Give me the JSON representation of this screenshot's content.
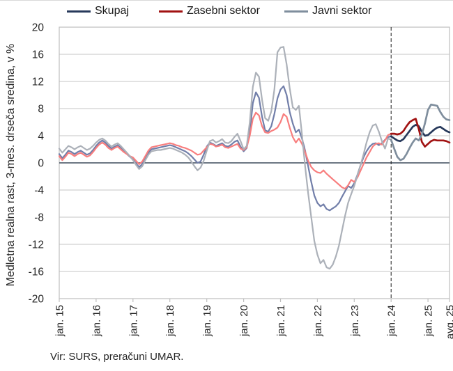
{
  "source_note": "Vir: SURS, preračuni UMAR.",
  "chart_data": {
    "type": "line",
    "title": "",
    "ylabel": "Medletna realna rast, 3-mes. drseča sredina, v %",
    "xlabel": "",
    "ylim": [
      -20,
      20
    ],
    "ytick_step": 4,
    "yticks": [
      20,
      16,
      12,
      8,
      4,
      0,
      -4,
      -8,
      -12,
      -16,
      -20
    ],
    "grid": true,
    "legend_position": "top",
    "total_months": 127,
    "x_ticks": [
      {
        "label": "jan. 15",
        "month": 0
      },
      {
        "label": "jan. 16",
        "month": 12
      },
      {
        "label": "jan. 17",
        "month": 24
      },
      {
        "label": "jan. 18",
        "month": 36
      },
      {
        "label": "jan. 19",
        "month": 48
      },
      {
        "label": "jan. 20",
        "month": 60
      },
      {
        "label": "jan. 21",
        "month": 72
      },
      {
        "label": "jan. 22",
        "month": 84
      },
      {
        "label": "jan. 23",
        "month": 96
      },
      {
        "label": "jan. 24",
        "month": 108
      },
      {
        "label": "jan. 25",
        "month": 120
      },
      {
        "label": "avg. 25",
        "month": 127
      }
    ],
    "dashed_vline_month": 108,
    "highlight_from_month": 108,
    "colors": {
      "gridline": "#c6c6c6",
      "border": "#bfbfbf",
      "zero_line": "#3d4a5c",
      "dashed_line": "#1a1a1a"
    },
    "series": [
      {
        "name": "Skupaj",
        "color_history": "#717EA9",
        "color_recent": "#27395B",
        "values": [
          1.3,
          0.7,
          1.2,
          1.8,
          1.6,
          1.3,
          1.6,
          1.8,
          1.5,
          1.2,
          1.4,
          1.9,
          2.5,
          3.0,
          3.3,
          3.0,
          2.5,
          2.1,
          2.4,
          2.6,
          2.2,
          1.7,
          1.3,
          0.9,
          0.5,
          -0.1,
          -0.6,
          -0.2,
          0.7,
          1.5,
          2.0,
          2.1,
          2.2,
          2.3,
          2.4,
          2.5,
          2.6,
          2.5,
          2.3,
          2.1,
          1.9,
          1.7,
          1.4,
          1.0,
          0.5,
          0.0,
          0.2,
          1.2,
          2.4,
          3.0,
          2.8,
          2.5,
          2.7,
          2.9,
          2.5,
          2.4,
          2.7,
          3.1,
          3.3,
          2.4,
          1.7,
          2.2,
          4.5,
          8.8,
          10.4,
          9.6,
          6.8,
          4.8,
          4.6,
          5.4,
          7.2,
          9.5,
          10.8,
          11.3,
          10.0,
          7.5,
          5.8,
          4.5,
          4.9,
          3.6,
          1.8,
          -0.5,
          -2.8,
          -4.8,
          -5.9,
          -6.4,
          -6.1,
          -6.8,
          -7.0,
          -6.7,
          -6.4,
          -5.9,
          -5.0,
          -4.2,
          -3.4,
          -3.7,
          -3.0,
          -1.8,
          -0.4,
          0.8,
          1.7,
          2.4,
          2.8,
          2.9,
          2.6,
          2.9,
          3.4,
          3.8,
          3.9,
          3.6,
          3.3,
          3.2,
          3.5,
          4.1,
          4.7,
          5.3,
          5.6,
          5.4,
          4.6,
          4.0,
          4.1,
          4.5,
          4.9,
          5.2,
          5.3,
          5.0,
          4.7,
          4.5
        ]
      },
      {
        "name": "Zasebni sektor",
        "color_history": "#F87E7E",
        "color_recent": "#A11212",
        "values": [
          1.0,
          0.4,
          0.9,
          1.5,
          1.3,
          1.0,
          1.3,
          1.5,
          1.2,
          0.9,
          1.1,
          1.6,
          2.2,
          2.7,
          3.0,
          2.7,
          2.2,
          1.9,
          2.2,
          2.4,
          2.0,
          1.6,
          1.3,
          1.0,
          0.8,
          0.3,
          -0.2,
          0.2,
          1.0,
          1.8,
          2.3,
          2.4,
          2.5,
          2.6,
          2.7,
          2.8,
          2.9,
          2.8,
          2.6,
          2.5,
          2.3,
          2.2,
          2.0,
          1.8,
          1.5,
          1.2,
          1.3,
          1.8,
          2.3,
          2.8,
          2.7,
          2.4,
          2.5,
          2.7,
          2.3,
          2.2,
          2.4,
          2.6,
          2.8,
          2.1,
          1.9,
          2.3,
          4.0,
          6.5,
          7.4,
          7.0,
          5.4,
          4.5,
          4.4,
          4.7,
          4.9,
          5.2,
          6.0,
          7.2,
          6.8,
          5.2,
          3.8,
          3.0,
          3.6,
          2.8,
          1.6,
          0.3,
          -0.6,
          -1.1,
          -1.4,
          -1.5,
          -1.1,
          -1.6,
          -2.0,
          -2.4,
          -2.8,
          -3.2,
          -3.6,
          -3.8,
          -3.3,
          -2.5,
          -2.8,
          -2.2,
          -1.2,
          -0.2,
          0.8,
          1.6,
          2.4,
          2.8,
          2.9,
          2.7,
          3.3,
          4.1,
          4.3,
          4.3,
          4.2,
          4.3,
          4.7,
          5.4,
          6.0,
          6.3,
          6.5,
          5.0,
          3.1,
          2.4,
          2.8,
          3.2,
          3.4,
          3.3,
          3.3,
          3.3,
          3.2,
          3.0
        ]
      },
      {
        "name": "Javni sektor",
        "color_history": "#ACB1B9",
        "color_recent": "#7F8E9D",
        "values": [
          2.1,
          1.5,
          2.0,
          2.5,
          2.3,
          2.0,
          2.3,
          2.5,
          2.2,
          1.9,
          2.1,
          2.5,
          3.0,
          3.4,
          3.6,
          3.3,
          2.8,
          2.4,
          2.7,
          2.9,
          2.5,
          2.0,
          1.5,
          1.0,
          0.4,
          -0.3,
          -0.9,
          -0.5,
          0.4,
          1.2,
          1.7,
          1.8,
          1.9,
          1.9,
          2.0,
          2.1,
          2.2,
          2.1,
          1.9,
          1.7,
          1.5,
          1.2,
          0.8,
          0.2,
          -0.5,
          -1.1,
          -0.7,
          0.3,
          1.8,
          3.2,
          3.4,
          3.0,
          3.2,
          3.5,
          3.0,
          2.9,
          3.2,
          3.8,
          4.3,
          3.2,
          2.0,
          2.5,
          6.0,
          11.2,
          13.3,
          12.7,
          9.3,
          6.6,
          6.2,
          7.6,
          10.8,
          16.3,
          17.0,
          17.1,
          14.5,
          11.0,
          8.2,
          7.8,
          8.4,
          4.2,
          -0.5,
          -4.5,
          -8.0,
          -11.5,
          -13.5,
          -14.8,
          -14.3,
          -15.4,
          -15.6,
          -15.0,
          -13.8,
          -12.2,
          -10.0,
          -7.8,
          -5.9,
          -4.6,
          -3.4,
          -1.9,
          -0.4,
          1.2,
          3.0,
          4.5,
          5.5,
          5.7,
          4.6,
          3.2,
          2.1,
          3.6,
          3.4,
          2.1,
          0.9,
          0.4,
          0.6,
          1.3,
          2.2,
          3.0,
          3.6,
          3.3,
          4.2,
          5.8,
          7.8,
          8.6,
          8.5,
          8.4,
          7.5,
          6.8,
          6.4,
          6.3
        ]
      }
    ]
  }
}
